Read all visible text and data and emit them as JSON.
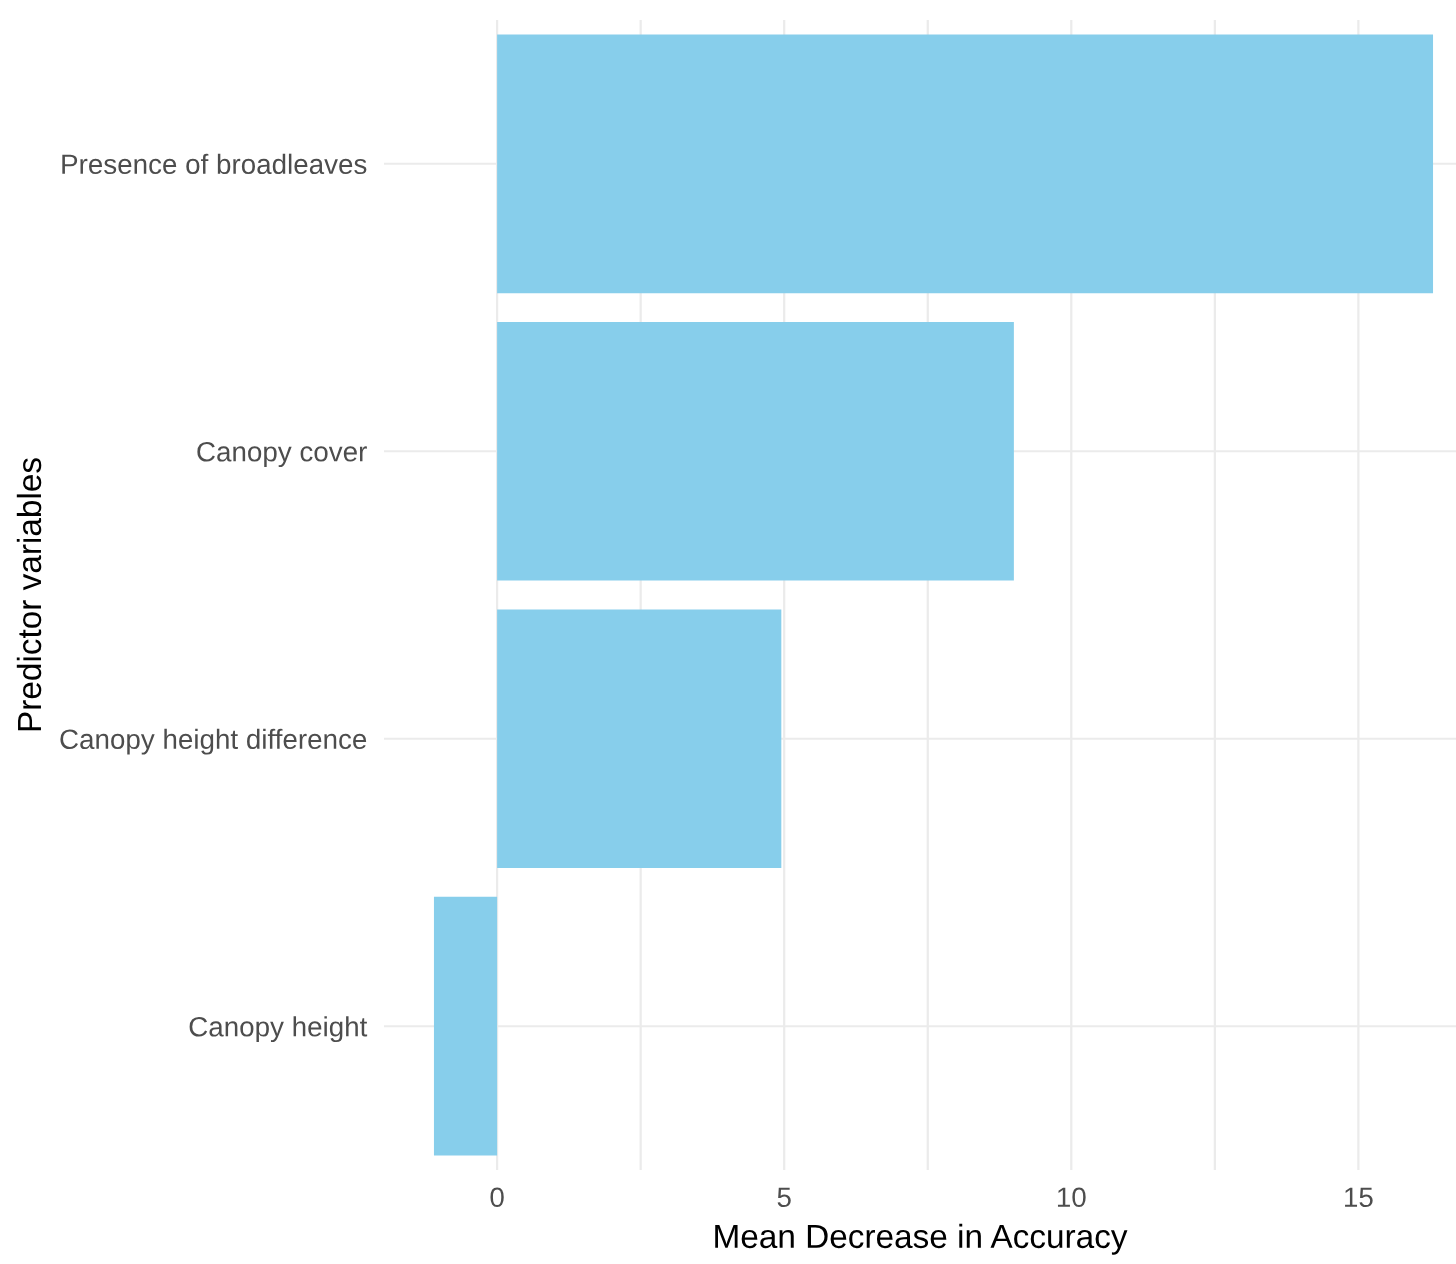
{
  "chart_data": {
    "type": "bar",
    "orientation": "horizontal",
    "categories": [
      "Presence of broadleaves",
      "Canopy cover",
      "Canopy height difference",
      "Canopy height"
    ],
    "values": [
      16.3,
      9.0,
      4.95,
      -1.1
    ],
    "color": "#87ceeb",
    "xlabel": "Mean Decrease in Accuracy",
    "ylabel": "Predictor variables",
    "xlim": [
      -1.97,
      16.7
    ],
    "xticks": [
      0,
      {
        "value": 2.5,
        "label": null
      },
      5,
      {
        "value": 7.5,
        "label": null
      },
      10,
      {
        "value": 12.5,
        "label": null
      },
      15
    ],
    "grid": true
  }
}
